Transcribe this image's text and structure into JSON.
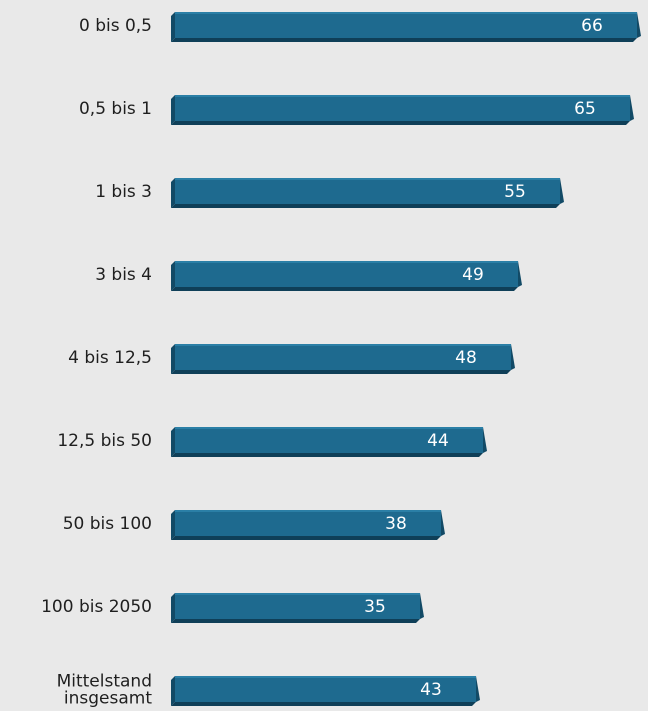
{
  "chart_data": {
    "type": "bar",
    "orientation": "horizontal",
    "categories": [
      "0 bis 0,5",
      "0,5 bis 1",
      "1 bis 3",
      "3 bis 4",
      "4 bis 12,5",
      "12,5 bis 50",
      "50 bis 100",
      "100 bis 2050",
      "Mittelstand insgesamt"
    ],
    "category_lines": [
      [
        "0 bis 0,5"
      ],
      [
        "0,5 bis 1"
      ],
      [
        "1 bis 3"
      ],
      [
        "3 bis 4"
      ],
      [
        "4 bis 12,5"
      ],
      [
        "12,5 bis 50"
      ],
      [
        "50 bis 100"
      ],
      [
        "100 bis 2050"
      ],
      [
        "Mittelstand",
        "insgesamt"
      ]
    ],
    "values": [
      66,
      65,
      55,
      49,
      48,
      44,
      38,
      35,
      43
    ],
    "data_labels": [
      "66",
      "65",
      "55",
      "49",
      "48",
      "44",
      "38",
      "35",
      "43"
    ],
    "title": "",
    "xlabel": "",
    "ylabel": "",
    "xlim": [
      0,
      66
    ],
    "grid": false,
    "legend": "none",
    "colors": {
      "bar_face": "#1e6a8f",
      "bar_top": "#2b7fa6",
      "bar_side": "#124a66",
      "bar_bottom": "#0f3f58",
      "background": "#e9e9e9"
    }
  }
}
